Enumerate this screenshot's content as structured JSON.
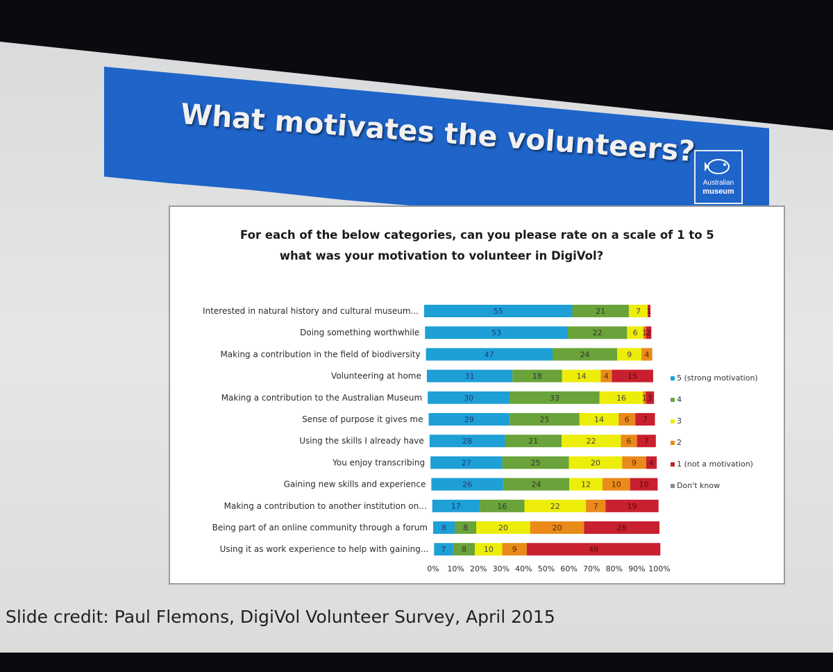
{
  "slide": {
    "title": "What motivates the volunteers?",
    "logo_line1": "Australian",
    "logo_line2": "museum",
    "credit": "Slide credit: Paul Flemons, DigiVol Volunteer Survey, April 2015"
  },
  "colors": {
    "banner": "#1f64c8",
    "s5": "#1e9fd6",
    "s4": "#69a339",
    "s3": "#eded0a",
    "s2": "#e98a1a",
    "s1": "#c8202e",
    "dk": "#8a8a8a"
  },
  "chart_data": {
    "type": "bar",
    "orientation": "horizontal",
    "stacked": "percent",
    "title_lines": [
      "For each of the below categories, can you please rate on a scale of 1 to 5",
      "what was your motivation to volunteer in DigiVol?"
    ],
    "categories": [
      "Interested in natural history and cultural museum...",
      "Doing something worthwhile",
      "Making a contribution in the field of biodiversity",
      "Volunteering at home",
      "Making a contribution to the Australian Museum",
      "Sense of purpose it gives me",
      "Using the skills I already have",
      "You enjoy transcribing",
      "Gaining new skills and experience",
      "Making a contribution to another institution on...",
      "Being part of an online community through a forum",
      "Using it as work experience to help with gaining..."
    ],
    "series": [
      {
        "name": "5 (strong motivation)",
        "values": [
          55,
          53,
          47,
          31,
          30,
          29,
          28,
          27,
          26,
          17,
          8,
          7
        ]
      },
      {
        "name": "4",
        "values": [
          21,
          22,
          24,
          18,
          33,
          25,
          21,
          25,
          24,
          16,
          8,
          8
        ]
      },
      {
        "name": "3",
        "values": [
          7,
          6,
          9,
          14,
          16,
          14,
          22,
          20,
          12,
          22,
          20,
          10
        ]
      },
      {
        "name": "2",
        "values": [
          0,
          1,
          4,
          4,
          1,
          6,
          6,
          9,
          10,
          7,
          20,
          9
        ]
      },
      {
        "name": "1 (not a motivation)",
        "values": [
          1,
          2,
          0,
          15,
          3,
          7,
          7,
          4,
          10,
          19,
          28,
          49
        ]
      },
      {
        "name": "Don't know",
        "values": [
          0,
          0,
          0,
          0,
          0,
          0,
          0,
          0,
          0,
          0,
          0,
          0
        ]
      }
    ],
    "x_ticks": [
      "0%",
      "10%",
      "20%",
      "30%",
      "40%",
      "50%",
      "60%",
      "70%",
      "80%",
      "90%",
      "100%"
    ],
    "xlim": [
      0,
      100
    ],
    "legend_position": "right"
  }
}
